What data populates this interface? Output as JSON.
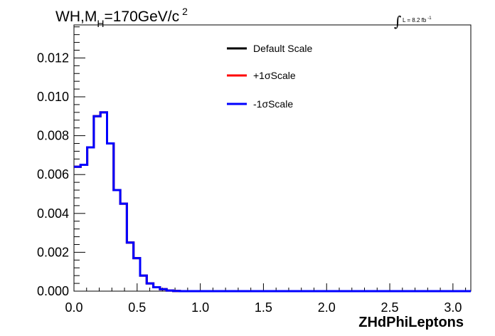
{
  "title": {
    "prefix": "WH,M",
    "subscript": "H",
    "suffix": "=170GeV/c",
    "superscript": "2"
  },
  "luminosity": {
    "text": "L = 8.2 fb",
    "superscript": "-1"
  },
  "chart_data": {
    "type": "line",
    "style": "step-histogram",
    "xlabel": "ZHdPhiLeptons",
    "ylabel": "",
    "xlim": [
      0,
      3.1416
    ],
    "ylim": [
      0,
      0.0137
    ],
    "xticks": [
      "0.0",
      "0.5",
      "1.0",
      "1.5",
      "2.0",
      "2.5",
      "3.0"
    ],
    "xtick_values": [
      0,
      0.5,
      1.0,
      1.5,
      2.0,
      2.5,
      3.0
    ],
    "yticks": [
      "0.000",
      "0.002",
      "0.004",
      "0.006",
      "0.008",
      "0.010",
      "0.012"
    ],
    "ytick_values": [
      0,
      0.002,
      0.004,
      0.006,
      0.008,
      0.01,
      0.012
    ],
    "bin_edges": [
      0.0,
      0.0524,
      0.1047,
      0.1571,
      0.2094,
      0.2618,
      0.3142,
      0.3665,
      0.4189,
      0.4712,
      0.5236,
      0.576,
      0.6283,
      0.6807,
      0.733,
      0.7854,
      0.8378,
      0.8901,
      3.1416
    ],
    "legend_position": "top-center",
    "grid": false,
    "series": [
      {
        "name": "Default Scale",
        "color": "#000000",
        "values": [
          0.0064,
          0.0065,
          0.0074,
          0.009,
          0.0092,
          0.0076,
          0.0052,
          0.0045,
          0.0025,
          0.0017,
          0.0008,
          0.0004,
          0.0002,
          0.0001,
          3e-05,
          1e-05,
          0.0,
          0.0
        ]
      },
      {
        "name": "+1σScale",
        "color": "#ff0000",
        "values": [
          0.0064,
          0.0065,
          0.0074,
          0.009,
          0.0092,
          0.0076,
          0.0052,
          0.0045,
          0.0025,
          0.0017,
          0.0008,
          0.0004,
          0.0002,
          0.0001,
          3e-05,
          1e-05,
          0.0,
          0.0
        ]
      },
      {
        "name": "-1σScale",
        "color": "#0000ff",
        "values": [
          0.0064,
          0.0065,
          0.0074,
          0.009,
          0.0092,
          0.0076,
          0.0052,
          0.0045,
          0.0025,
          0.0017,
          0.0008,
          0.0004,
          0.0002,
          0.0001,
          3e-05,
          1e-05,
          0.0,
          0.0
        ]
      }
    ]
  }
}
